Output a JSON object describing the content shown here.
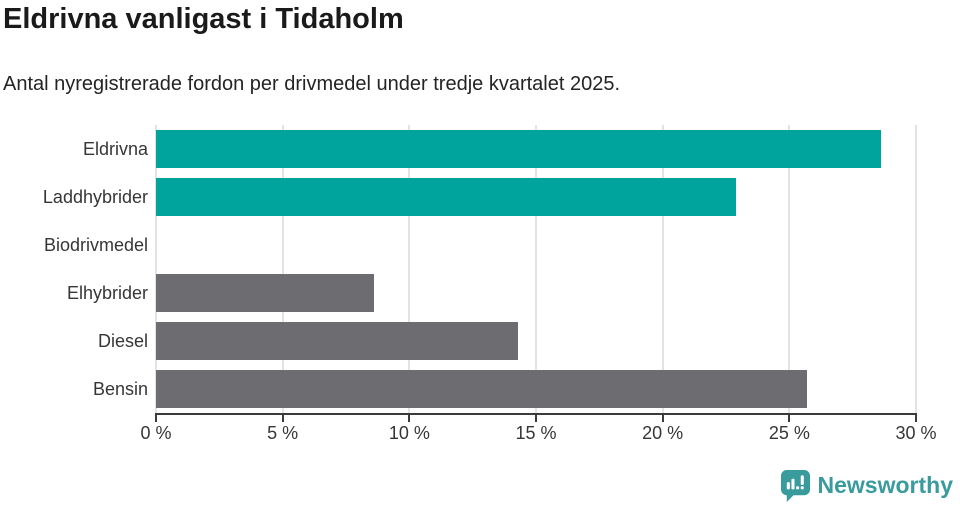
{
  "header": {
    "title": "Eldrivna vanligast i Tidaholm",
    "subtitle": "Antal nyregistrerade fordon per drivmedel under tredje kvartalet 2025."
  },
  "chart_data": {
    "type": "bar",
    "orientation": "horizontal",
    "title": "Eldrivna vanligast i Tidaholm",
    "subtitle": "Antal nyregistrerade fordon per drivmedel under tredje kvartalet 2025.",
    "categories": [
      "Eldrivna",
      "Laddhybrider",
      "Biodrivmedel",
      "Elhybrider",
      "Diesel",
      "Bensin"
    ],
    "values": [
      28.6,
      22.9,
      0,
      8.6,
      14.3,
      25.7
    ],
    "unit": "%",
    "bar_colors": [
      "#00a49c",
      "#00a49c",
      "#00a49c",
      "#6c6c71",
      "#6c6c71",
      "#6c6c71"
    ],
    "xlim": [
      0,
      30
    ],
    "x_ticks": [
      0,
      5,
      10,
      15,
      20,
      25,
      30
    ],
    "x_tick_labels": [
      "0 %",
      "5 %",
      "10 %",
      "15 %",
      "20 %",
      "25 %",
      "30 %"
    ],
    "grid": true,
    "legend": "none",
    "xlabel": "",
    "ylabel": ""
  },
  "footer": {
    "brand": "Newsworthy",
    "logo_icon": "bar-chart-speech-bubble-icon"
  },
  "colors": {
    "accent_teal": "#00a49c",
    "neutral_gray": "#6c6c71",
    "gridline": "#e3e3e3",
    "axis": "#3b3b3b",
    "title_text": "#1a1a1a",
    "body_text": "#363636",
    "brand_teal": "#3a9b9d"
  }
}
